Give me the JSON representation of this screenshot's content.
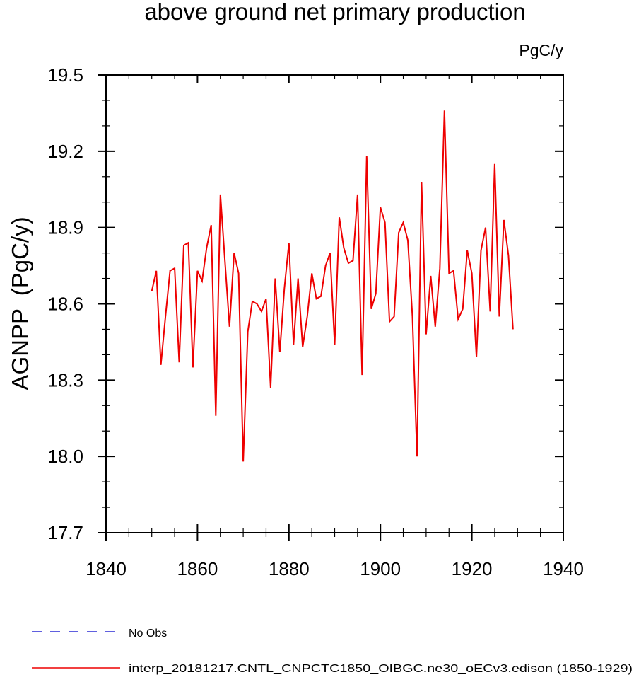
{
  "chart_data": {
    "type": "line",
    "title": "above ground net primary production",
    "units_label": "PgC/y",
    "ylabel": "AGNPP  (PgC/y)",
    "xlabel": "",
    "xlim": [
      1840,
      1940
    ],
    "ylim": [
      17.7,
      19.5
    ],
    "xticks": [
      1840,
      1860,
      1880,
      1900,
      1920,
      1940
    ],
    "xtick_labels": [
      "1840",
      "1860",
      "1880",
      "1900",
      "1920",
      "1940"
    ],
    "yticks": [
      17.7,
      18.0,
      18.3,
      18.6,
      18.9,
      19.2,
      19.5
    ],
    "ytick_labels": [
      "17.7",
      "18.0",
      "18.3",
      "18.6",
      "18.9",
      "19.2",
      "19.5"
    ],
    "grid": false,
    "legend_position": "bottom",
    "legend": [
      {
        "label": "No Obs",
        "style": "dashed",
        "color": "#0000cc"
      },
      {
        "label": "interp_20181217.CNTL_CNPCTC1850_OIBGC.ne30_oECv3.edison (1850-1929)",
        "style": "solid",
        "color": "#ee0000"
      }
    ],
    "series": [
      {
        "name": "interp_20181217.CNTL_CNPCTC1850_OIBGC.ne30_oECv3.edison (1850-1929)",
        "color": "#ee0000",
        "x": [
          1850,
          1851,
          1852,
          1853,
          1854,
          1855,
          1856,
          1857,
          1858,
          1859,
          1860,
          1861,
          1862,
          1863,
          1864,
          1865,
          1866,
          1867,
          1868,
          1869,
          1870,
          1871,
          1872,
          1873,
          1874,
          1875,
          1876,
          1877,
          1878,
          1879,
          1880,
          1881,
          1882,
          1883,
          1884,
          1885,
          1886,
          1887,
          1888,
          1889,
          1890,
          1891,
          1892,
          1893,
          1894,
          1895,
          1896,
          1897,
          1898,
          1899,
          1900,
          1901,
          1902,
          1903,
          1904,
          1905,
          1906,
          1907,
          1908,
          1909,
          1910,
          1911,
          1912,
          1913,
          1914,
          1915,
          1916,
          1917,
          1918,
          1919,
          1920,
          1921,
          1922,
          1923,
          1924,
          1925,
          1926,
          1927,
          1928,
          1929
        ],
        "values": [
          18.65,
          18.73,
          18.36,
          18.55,
          18.73,
          18.74,
          18.37,
          18.83,
          18.84,
          18.35,
          18.73,
          18.69,
          18.82,
          18.91,
          18.16,
          19.03,
          18.77,
          18.51,
          18.8,
          18.72,
          17.98,
          18.49,
          18.61,
          18.6,
          18.57,
          18.62,
          18.27,
          18.7,
          18.41,
          18.66,
          18.84,
          18.44,
          18.7,
          18.43,
          18.55,
          18.72,
          18.62,
          18.63,
          18.75,
          18.8,
          18.44,
          18.94,
          18.82,
          18.76,
          18.77,
          19.03,
          18.32,
          19.18,
          18.58,
          18.64,
          18.98,
          18.92,
          18.53,
          18.55,
          18.88,
          18.92,
          18.85,
          18.55,
          18.0,
          19.08,
          18.48,
          18.71,
          18.51,
          18.74,
          19.36,
          18.72,
          18.73,
          18.54,
          18.58,
          18.81,
          18.72,
          18.39,
          18.81,
          18.9,
          18.57,
          19.15,
          18.55,
          18.93,
          18.79,
          18.5
        ]
      }
    ]
  }
}
